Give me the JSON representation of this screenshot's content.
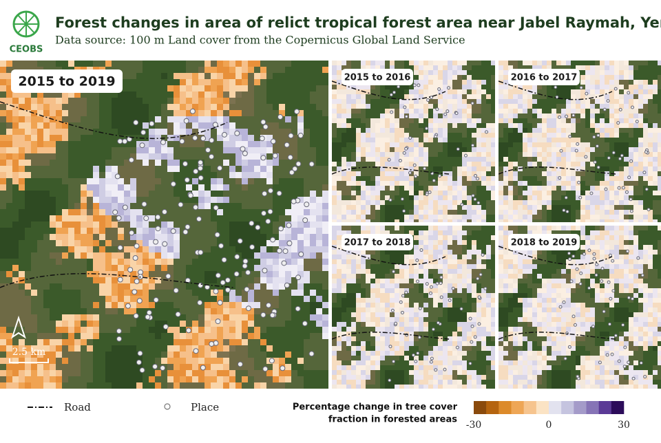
{
  "header": {
    "logo": "CEOBS",
    "title": "Forest changes in area of relict tropical forest area near Jabel Raymah, Yemen",
    "subtitle": "Data source: 100 m Land cover from the Copernicus Global Land Service"
  },
  "panels": [
    {
      "label": "2015 to 2019"
    },
    {
      "label": "2015 to 2016"
    },
    {
      "label": "2016 to 2017"
    },
    {
      "label": "2017 to 2018"
    },
    {
      "label": "2018 to 2019"
    }
  ],
  "scale_bar": "2.5 km",
  "legend": {
    "road": "Road",
    "place": "Place",
    "color_scale": {
      "title_lines": [
        "Percentage change in tree cover",
        "fraction in forested areas"
      ],
      "colors": [
        "#8a4a0c",
        "#b5640f",
        "#dc8a2a",
        "#eea656",
        "#f6c48e",
        "#fbe3c4",
        "#e2e2ef",
        "#c5c4df",
        "#a49bc9",
        "#8674b6",
        "#5b3a96",
        "#2c0c5a"
      ],
      "ticks": [
        -30,
        0,
        30
      ]
    }
  }
}
